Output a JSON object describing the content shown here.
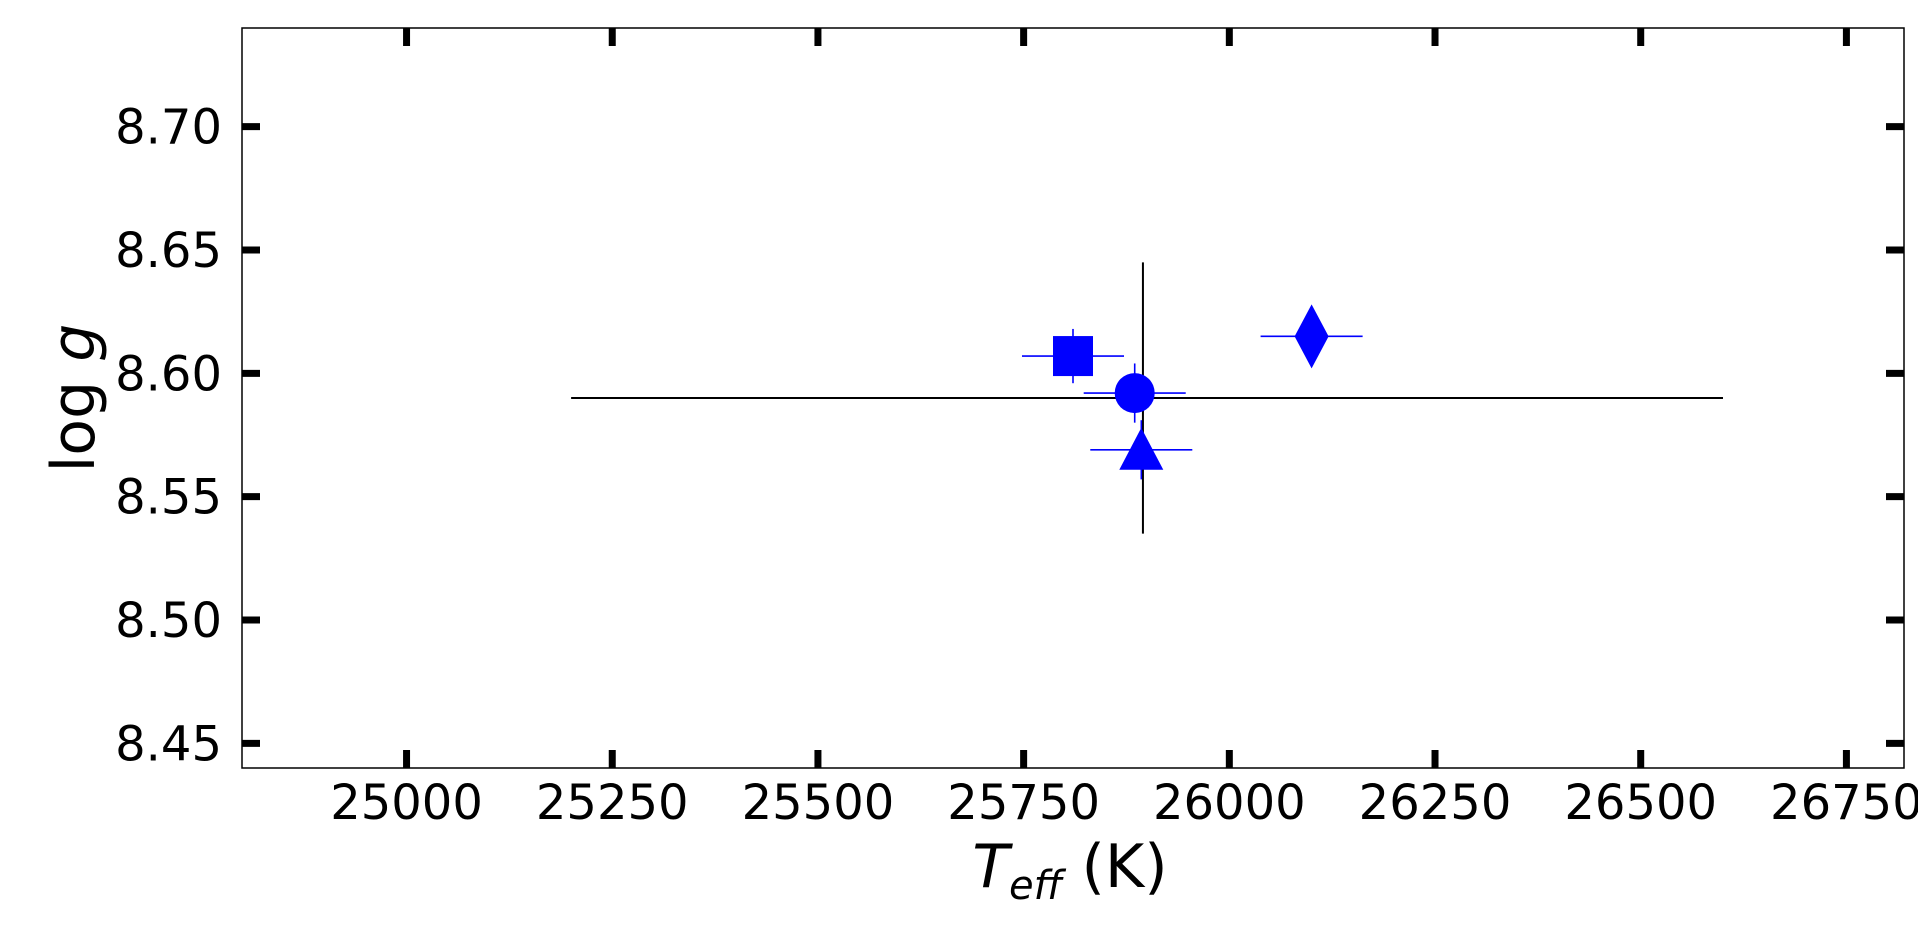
{
  "chart_data": {
    "type": "scatter",
    "title": "",
    "xlabel": {
      "symbol": "T",
      "subscript": "eff",
      "unit": " (K)"
    },
    "ylabel": {
      "prefix": "log ",
      "symbol": "g"
    },
    "xlim": [
      24800,
      26820
    ],
    "ylim": [
      8.44,
      8.74
    ],
    "xticks": [
      25000,
      25250,
      25500,
      25750,
      26000,
      26250,
      26500,
      26750
    ],
    "xtick_labels": [
      "25000",
      "25250",
      "25500",
      "25750",
      "26000",
      "26250",
      "26500",
      "26750"
    ],
    "yticks": [
      8.45,
      8.5,
      8.55,
      8.6,
      8.65,
      8.7
    ],
    "ytick_labels": [
      "8.45",
      "8.50",
      "8.55",
      "8.60",
      "8.65",
      "8.70"
    ],
    "grid": false,
    "legend": false,
    "reference": {
      "x": 25895,
      "xerr_low": 695,
      "xerr_high": 705,
      "y": 8.59,
      "yerr": 0.055,
      "color": "#000000"
    },
    "points": [
      {
        "marker": "square",
        "x": 25810,
        "y": 8.607,
        "xerr": 62,
        "yerr": 0.011,
        "color": "#0000ff"
      },
      {
        "marker": "circle",
        "x": 25885,
        "y": 8.592,
        "xerr": 62,
        "yerr": 0.012,
        "color": "#0000ff"
      },
      {
        "marker": "triangle",
        "x": 25893,
        "y": 8.569,
        "xerr": 62,
        "yerr": 0.012,
        "color": "#0000ff"
      },
      {
        "marker": "diamond",
        "x": 26100,
        "y": 8.615,
        "xerr": 62,
        "yerr": 0.009,
        "color": "#0000ff"
      }
    ]
  }
}
